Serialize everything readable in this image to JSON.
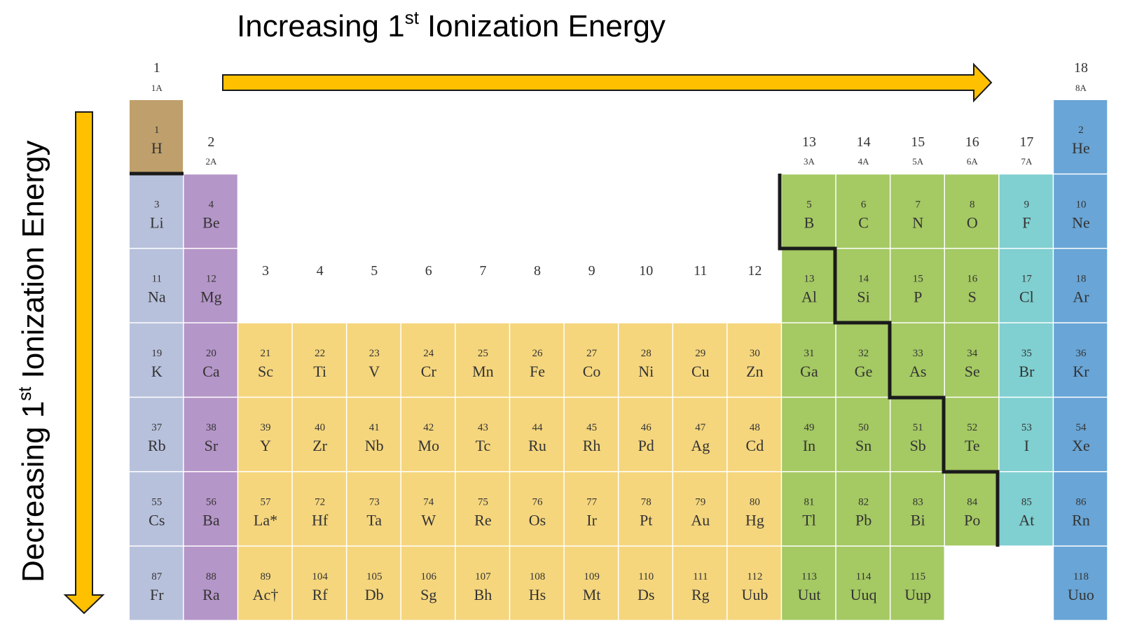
{
  "top_label": [
    "Increasing 1",
    "st",
    "Ionization Energy"
  ],
  "side_label": [
    "Decreasing 1",
    "st",
    "Ionization Energy"
  ],
  "groups": [
    {
      "number": 1,
      "label": "1A"
    },
    {
      "number": 2,
      "label": "2A"
    },
    {
      "number": 3
    },
    {
      "number": 4
    },
    {
      "number": 5
    },
    {
      "number": 6
    },
    {
      "number": 7
    },
    {
      "number": 8
    },
    {
      "number": 9
    },
    {
      "number": 10
    },
    {
      "number": 11
    },
    {
      "number": 12
    },
    {
      "number": 13,
      "label": "3A"
    },
    {
      "number": 14,
      "label": "4A"
    },
    {
      "number": 15,
      "label": "5A"
    },
    {
      "number": 16,
      "label": "6A"
    },
    {
      "number": 17,
      "label": "7A"
    },
    {
      "number": 18,
      "label": "8A"
    }
  ],
  "periods": [
    [
      {
        "number": 1,
        "symbol": "H"
      },
      null,
      null,
      null,
      null,
      null,
      null,
      null,
      null,
      null,
      null,
      null,
      null,
      null,
      null,
      null,
      null,
      {
        "number": 2,
        "symbol": "He"
      }
    ],
    [
      {
        "number": 3,
        "symbol": "Li"
      },
      {
        "number": 4,
        "symbol": "Be"
      },
      null,
      null,
      null,
      null,
      null,
      null,
      null,
      null,
      null,
      null,
      {
        "number": 5,
        "symbol": "B"
      },
      {
        "number": 6,
        "symbol": "C"
      },
      {
        "number": 7,
        "symbol": "N"
      },
      {
        "number": 8,
        "symbol": "O"
      },
      {
        "number": 9,
        "symbol": "F"
      },
      {
        "number": 10,
        "symbol": "Ne"
      }
    ],
    [
      {
        "number": 11,
        "symbol": "Na"
      },
      {
        "number": 12,
        "symbol": "Mg"
      },
      null,
      null,
      null,
      null,
      null,
      null,
      null,
      null,
      null,
      null,
      {
        "number": 13,
        "symbol": "Al"
      },
      {
        "number": 14,
        "symbol": "Si"
      },
      {
        "number": 15,
        "symbol": "P"
      },
      {
        "number": 16,
        "symbol": "S"
      },
      {
        "number": 17,
        "symbol": "Cl"
      },
      {
        "number": 18,
        "symbol": "Ar"
      }
    ],
    [
      {
        "number": 19,
        "symbol": "K"
      },
      {
        "number": 20,
        "symbol": "Ca"
      },
      {
        "number": 21,
        "symbol": "Sc"
      },
      {
        "number": 22,
        "symbol": "Ti"
      },
      {
        "number": 23,
        "symbol": "V"
      },
      {
        "number": 24,
        "symbol": "Cr"
      },
      {
        "number": 25,
        "symbol": "Mn"
      },
      {
        "number": 26,
        "symbol": "Fe"
      },
      {
        "number": 27,
        "symbol": "Co"
      },
      {
        "number": 28,
        "symbol": "Ni"
      },
      {
        "number": 29,
        "symbol": "Cu"
      },
      {
        "number": 30,
        "symbol": "Zn"
      },
      {
        "number": 31,
        "symbol": "Ga"
      },
      {
        "number": 32,
        "symbol": "Ge"
      },
      {
        "number": 33,
        "symbol": "As"
      },
      {
        "number": 34,
        "symbol": "Se"
      },
      {
        "number": 35,
        "symbol": "Br"
      },
      {
        "number": 36,
        "symbol": "Kr"
      }
    ],
    [
      {
        "number": 37,
        "symbol": "Rb"
      },
      {
        "number": 38,
        "symbol": "Sr"
      },
      {
        "number": 39,
        "symbol": "Y"
      },
      {
        "number": 40,
        "symbol": "Zr"
      },
      {
        "number": 41,
        "symbol": "Nb"
      },
      {
        "number": 42,
        "symbol": "Mo"
      },
      {
        "number": 43,
        "symbol": "Tc"
      },
      {
        "number": 44,
        "symbol": "Ru"
      },
      {
        "number": 45,
        "symbol": "Rh"
      },
      {
        "number": 46,
        "symbol": "Pd"
      },
      {
        "number": 47,
        "symbol": "Ag"
      },
      {
        "number": 48,
        "symbol": "Cd"
      },
      {
        "number": 49,
        "symbol": "In"
      },
      {
        "number": 50,
        "symbol": "Sn"
      },
      {
        "number": 51,
        "symbol": "Sb"
      },
      {
        "number": 52,
        "symbol": "Te"
      },
      {
        "number": 53,
        "symbol": "I"
      },
      {
        "number": 54,
        "symbol": "Xe"
      }
    ],
    [
      {
        "number": 55,
        "symbol": "Cs"
      },
      {
        "number": 56,
        "symbol": "Ba"
      },
      {
        "number": 57,
        "symbol": "La*"
      },
      {
        "number": 72,
        "symbol": "Hf"
      },
      {
        "number": 73,
        "symbol": "Ta"
      },
      {
        "number": 74,
        "symbol": "W"
      },
      {
        "number": 75,
        "symbol": "Re"
      },
      {
        "number": 76,
        "symbol": "Os"
      },
      {
        "number": 77,
        "symbol": "Ir"
      },
      {
        "number": 78,
        "symbol": "Pt"
      },
      {
        "number": 79,
        "symbol": "Au"
      },
      {
        "number": 80,
        "symbol": "Hg"
      },
      {
        "number": 81,
        "symbol": "Tl"
      },
      {
        "number": 82,
        "symbol": "Pb"
      },
      {
        "number": 83,
        "symbol": "Bi"
      },
      {
        "number": 84,
        "symbol": "Po"
      },
      {
        "number": 85,
        "symbol": "At"
      },
      {
        "number": 86,
        "symbol": "Rn"
      }
    ],
    [
      {
        "number": 87,
        "symbol": "Fr"
      },
      {
        "number": 88,
        "symbol": "Ra"
      },
      {
        "number": 89,
        "symbol": "Ac†"
      },
      {
        "number": 104,
        "symbol": "Rf"
      },
      {
        "number": 105,
        "symbol": "Db"
      },
      {
        "number": 106,
        "symbol": "Sg"
      },
      {
        "number": 107,
        "symbol": "Bh"
      },
      {
        "number": 108,
        "symbol": "Hs"
      },
      {
        "number": 109,
        "symbol": "Mt"
      },
      {
        "number": 110,
        "symbol": "Ds"
      },
      {
        "number": 111,
        "symbol": "Rg"
      },
      {
        "number": 112,
        "symbol": "Uub"
      },
      {
        "number": 113,
        "symbol": "Uut"
      },
      {
        "number": 114,
        "symbol": "Uuq"
      },
      {
        "number": 115,
        "symbol": "Uup"
      },
      null,
      null,
      {
        "number": 118,
        "symbol": "Uuo"
      }
    ]
  ]
}
